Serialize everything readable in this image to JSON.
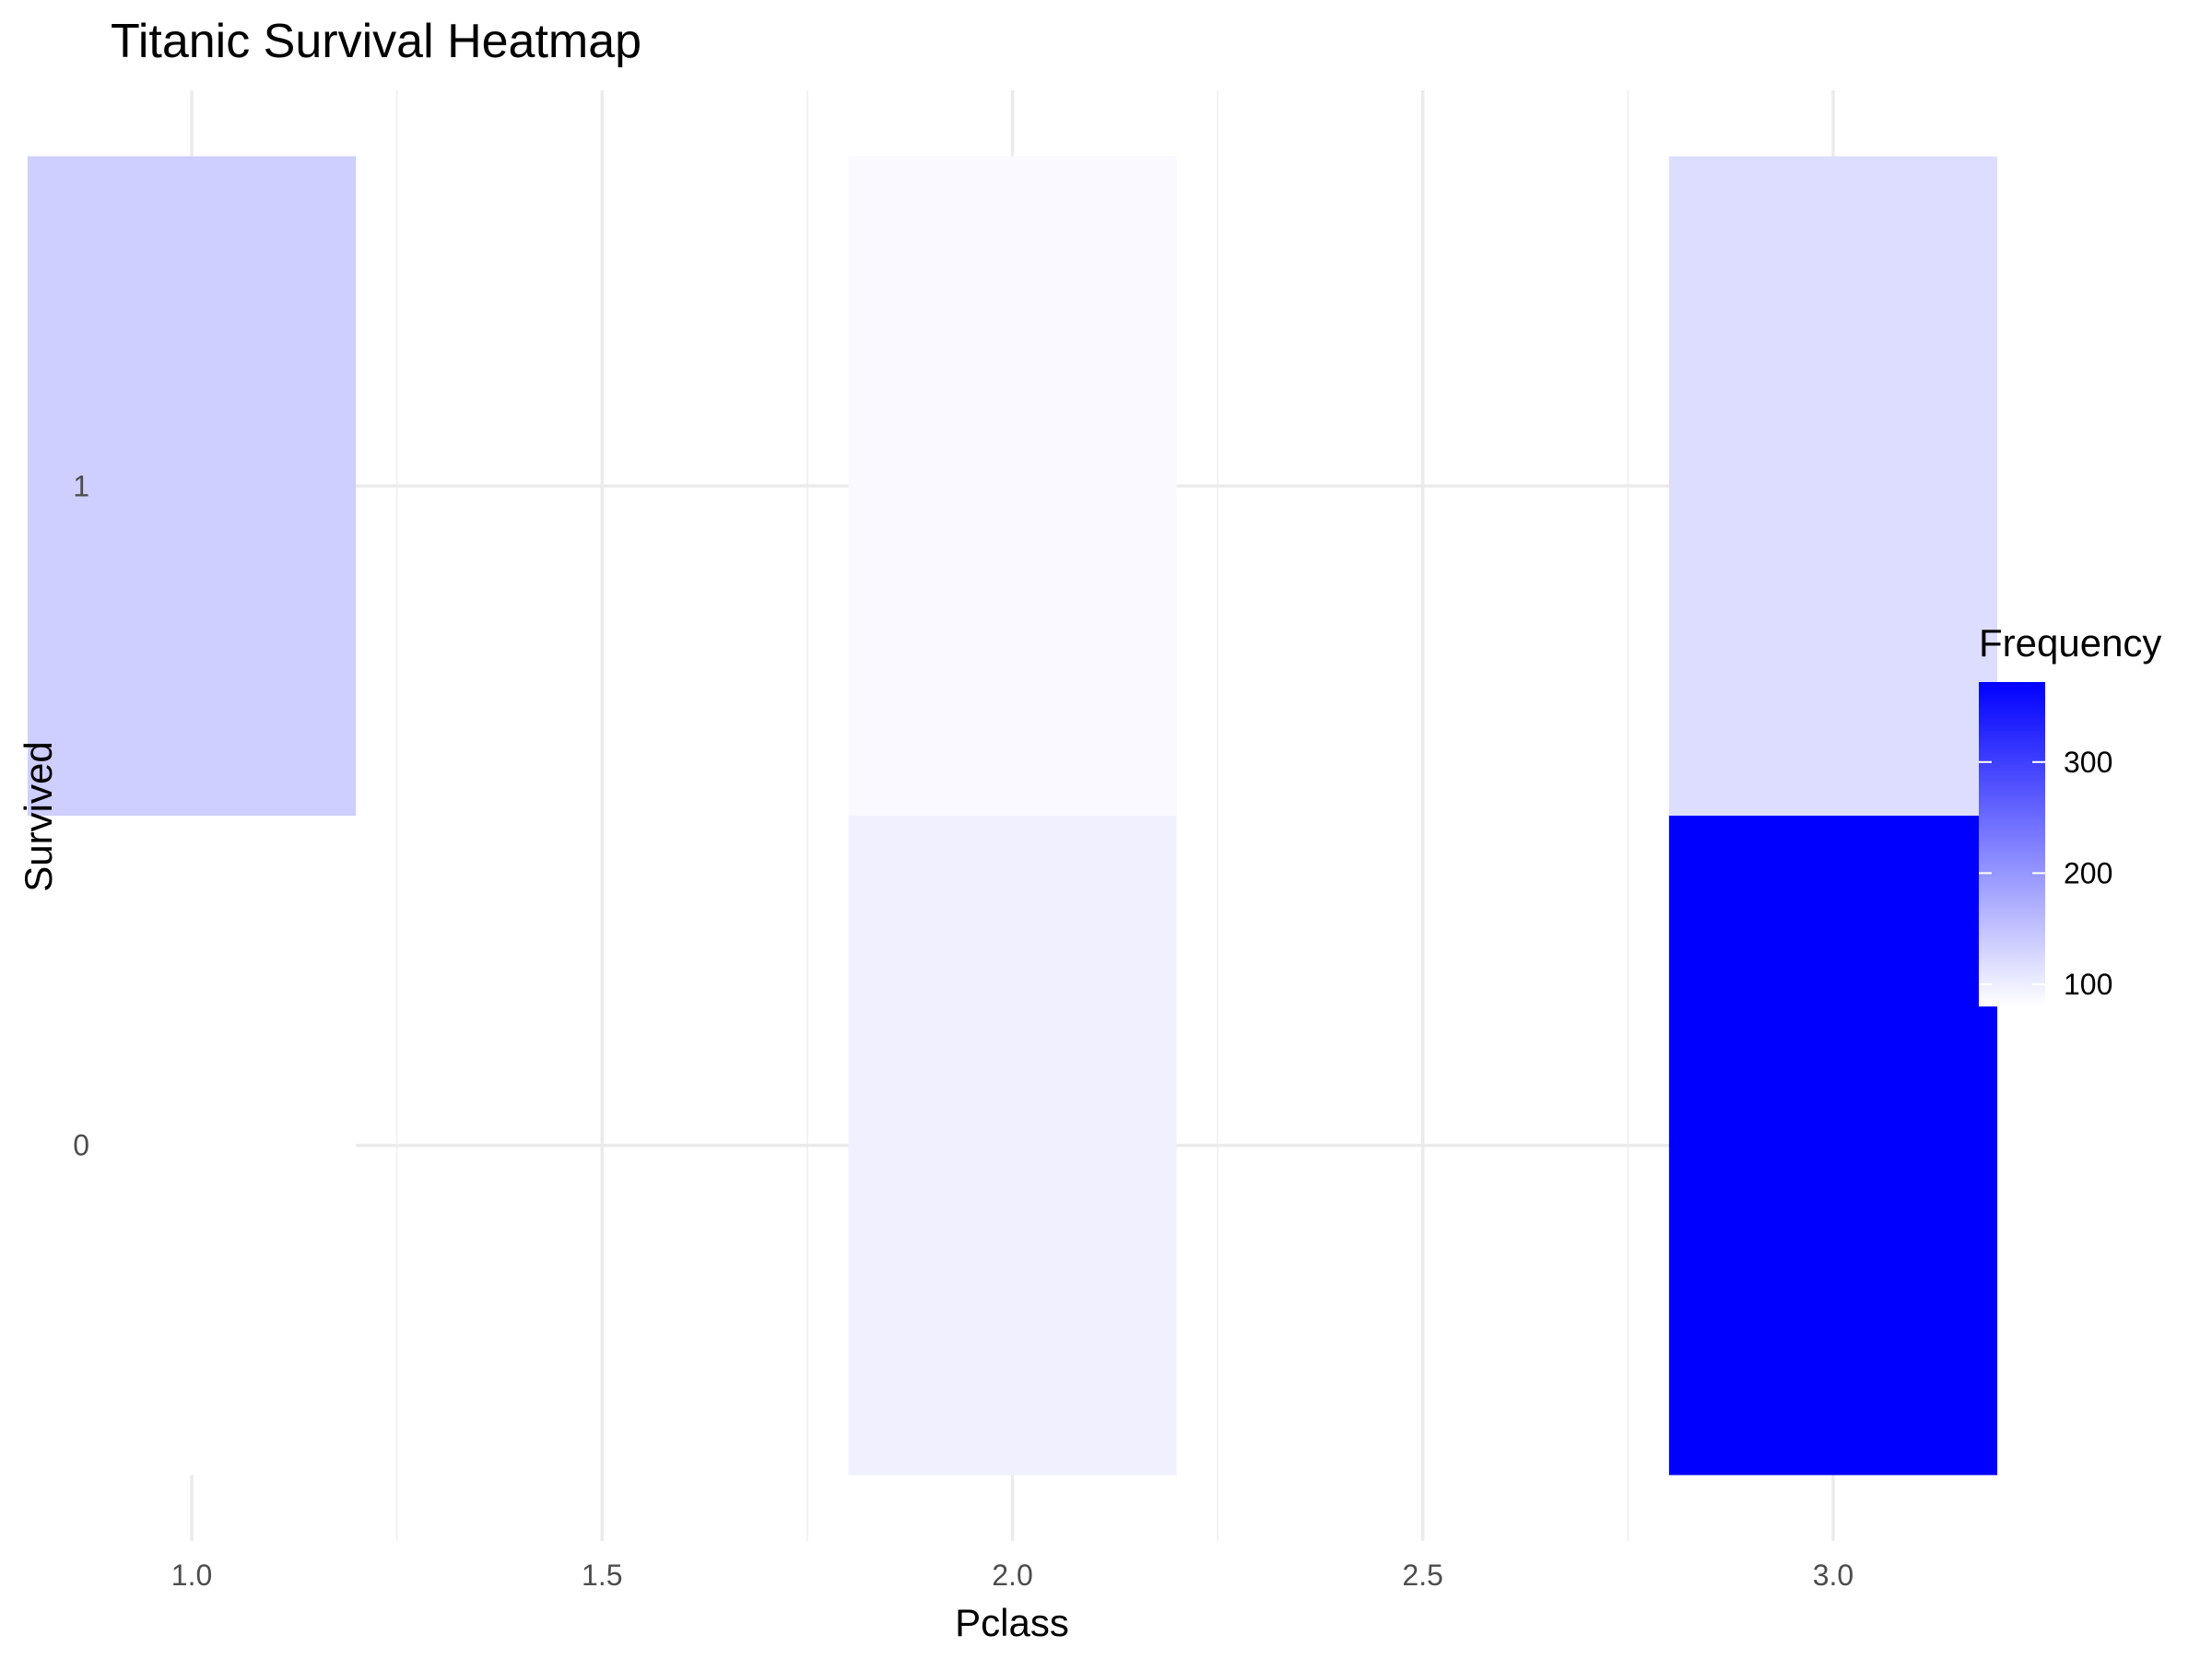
{
  "chart_data": {
    "type": "heatmap",
    "title": "Titanic Survival Heatmap",
    "xlabel": "Pclass",
    "ylabel": "Survived",
    "x_ticks": [
      "1.0",
      "1.5",
      "2.0",
      "2.5",
      "3.0"
    ],
    "x_tick_values": [
      1.0,
      1.5,
      2.0,
      2.5,
      3.0
    ],
    "y_ticks": [
      "0",
      "1"
    ],
    "y_tick_values": [
      0,
      1
    ],
    "xlim": [
      0.9,
      3.1
    ],
    "ylim": [
      -0.6,
      1.6
    ],
    "grid": true,
    "cells": [
      {
        "x": 1,
        "y": 1,
        "value": 136
      },
      {
        "x": 1,
        "y": 0,
        "value": 80
      },
      {
        "x": 2,
        "y": 1,
        "value": 87
      },
      {
        "x": 2,
        "y": 0,
        "value": 97
      },
      {
        "x": 3,
        "y": 1,
        "value": 119
      },
      {
        "x": 3,
        "y": 0,
        "value": 372
      }
    ],
    "legend": {
      "title": "Frequency",
      "placement": "right",
      "ticks": [
        "100",
        "200",
        "300"
      ],
      "tick_values": [
        100,
        200,
        300
      ],
      "min": 80,
      "max": 372,
      "low_color": "#ffffff",
      "high_color": "#0000ff"
    }
  }
}
